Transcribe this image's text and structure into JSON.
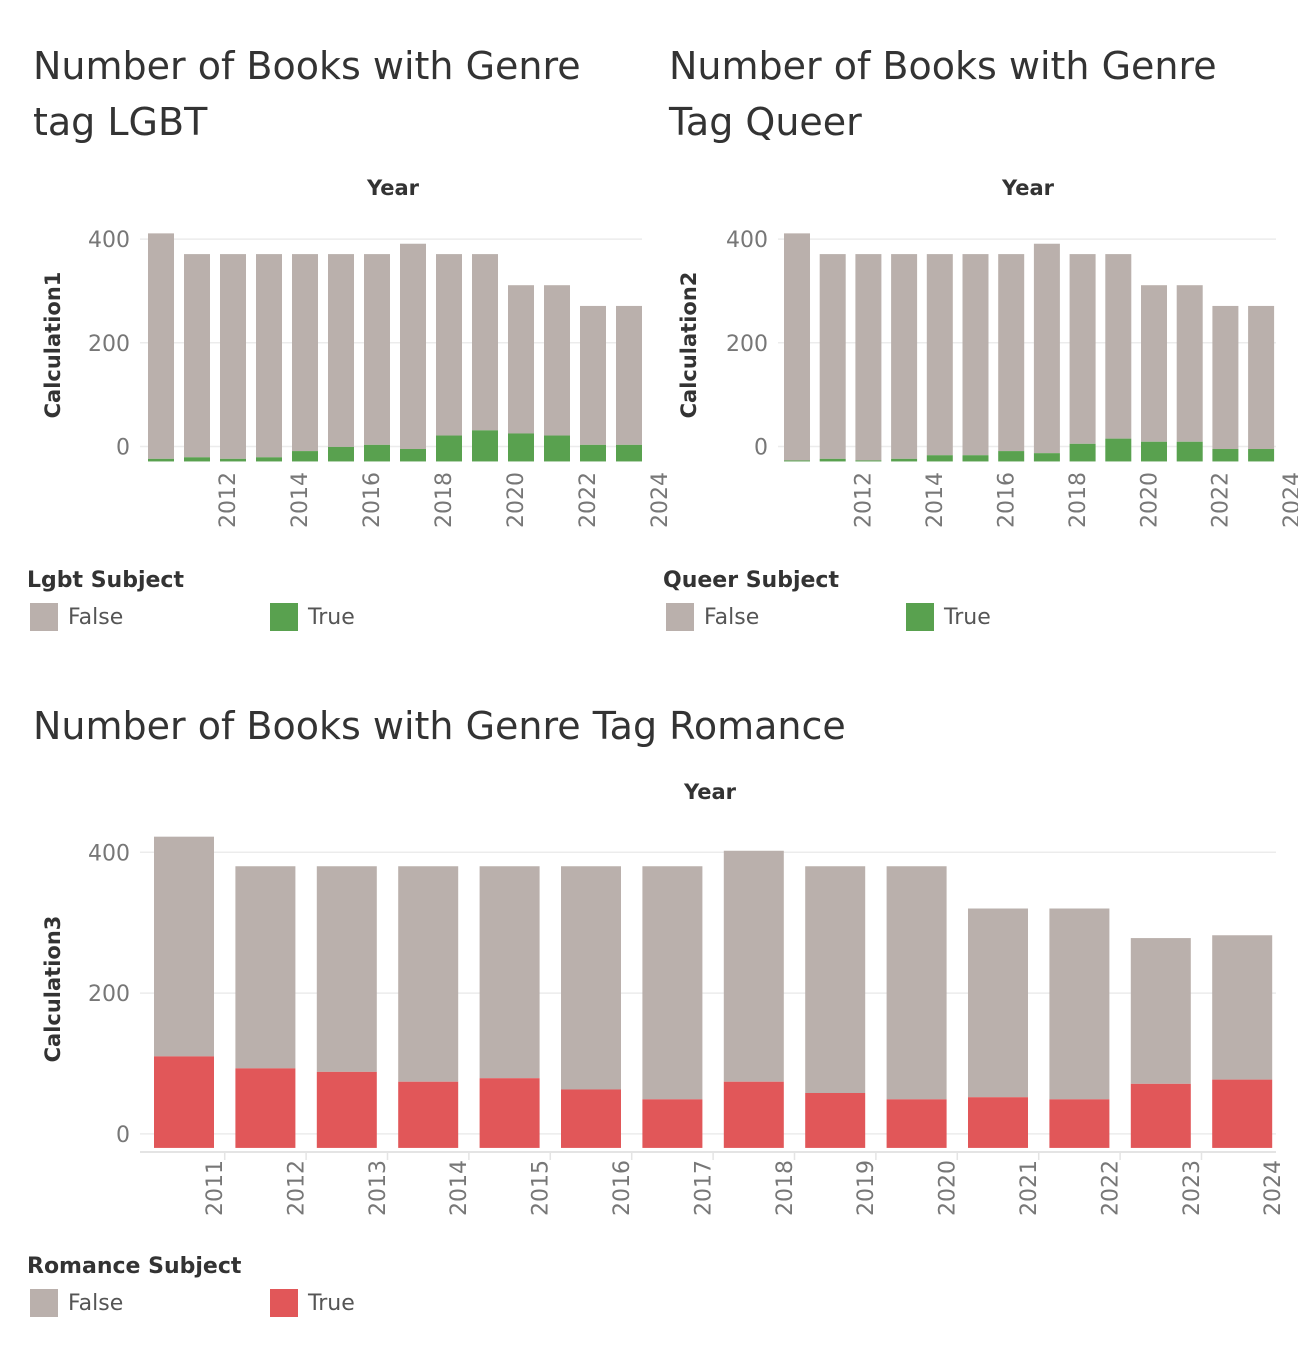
{
  "colors": {
    "false": "#bab0ac",
    "lgbt_true": "#59a14f",
    "queer_true": "#59a14f",
    "romance_true": "#e15759"
  },
  "chart_data": [
    {
      "id": "lgbt",
      "type": "bar",
      "stacked": true,
      "title": "Number of Books with Genre tag LGBT",
      "xlabel": "Year",
      "ylabel": "Calculation1",
      "categories": [
        "2011",
        "2012",
        "2013",
        "2014",
        "2015",
        "2016",
        "2017",
        "2018",
        "2019",
        "2020",
        "2021",
        "2022",
        "2023",
        "2024"
      ],
      "x_tick_labels": [
        "2012",
        "2014",
        "2016",
        "2018",
        "2020",
        "2022",
        "2024"
      ],
      "y_ticks": [
        0,
        200,
        400
      ],
      "ylim": [
        -30,
        460
      ],
      "series": [
        {
          "name": "True",
          "values": [
            5,
            8,
            5,
            8,
            20,
            28,
            32,
            24,
            50,
            60,
            54,
            50,
            32,
            32
          ]
        },
        {
          "name": "False",
          "values": [
            435,
            392,
            395,
            392,
            380,
            372,
            368,
            396,
            350,
            340,
            286,
            290,
            268,
            268
          ]
        }
      ],
      "legend": {
        "title": "Lgbt Subject",
        "items": [
          "False",
          "True"
        ]
      }
    },
    {
      "id": "queer",
      "type": "bar",
      "stacked": true,
      "title": "Number of Books with Genre Tag Queer",
      "xlabel": "Year",
      "ylabel": "Calculation2",
      "categories": [
        "2011",
        "2012",
        "2013",
        "2014",
        "2015",
        "2016",
        "2017",
        "2018",
        "2019",
        "2020",
        "2021",
        "2022",
        "2023",
        "2024"
      ],
      "x_tick_labels": [
        "2012",
        "2014",
        "2016",
        "2018",
        "2020",
        "2022",
        "2024"
      ],
      "y_ticks": [
        0,
        200,
        400
      ],
      "ylim": [
        -30,
        460
      ],
      "series": [
        {
          "name": "True",
          "values": [
            2,
            5,
            2,
            5,
            12,
            12,
            20,
            16,
            34,
            44,
            38,
            38,
            24,
            24
          ]
        },
        {
          "name": "False",
          "values": [
            438,
            395,
            398,
            395,
            388,
            388,
            380,
            404,
            366,
            356,
            302,
            302,
            276,
            276
          ]
        }
      ],
      "legend": {
        "title": "Queer Subject",
        "items": [
          "False",
          "True"
        ]
      }
    },
    {
      "id": "romance",
      "type": "bar",
      "stacked": true,
      "title": "Number of Books with Genre Tag Romance",
      "xlabel": "Year",
      "ylabel": "Calculation3",
      "categories": [
        "2011",
        "2012",
        "2013",
        "2014",
        "2015",
        "2016",
        "2017",
        "2018",
        "2019",
        "2020",
        "2021",
        "2022",
        "2023",
        "2024"
      ],
      "x_tick_labels": [
        "2011",
        "2012",
        "2013",
        "2014",
        "2015",
        "2016",
        "2017",
        "2018",
        "2019",
        "2020",
        "2021",
        "2022",
        "2023",
        "2024"
      ],
      "y_ticks": [
        0,
        200,
        400
      ],
      "ylim": [
        -20,
        460
      ],
      "series": [
        {
          "name": "True",
          "values": [
            130,
            113,
            108,
            94,
            99,
            83,
            69,
            94,
            78,
            69,
            72,
            69,
            91,
            97
          ]
        },
        {
          "name": "False",
          "values": [
            312,
            287,
            292,
            306,
            301,
            317,
            331,
            328,
            322,
            331,
            268,
            271,
            207,
            205
          ]
        }
      ],
      "legend": {
        "title": "Romance Subject",
        "items": [
          "False",
          "True"
        ]
      }
    }
  ],
  "titles": {
    "lgbt_line1": "Number of Books with Genre",
    "lgbt_line2": "tag LGBT",
    "queer_line1": "Number of Books with Genre",
    "queer_line2": "Tag Queer",
    "romance": "Number of Books with Genre Tag Romance"
  },
  "legends": {
    "lgbt": {
      "title": "Lgbt Subject",
      "false_label": "False",
      "true_label": "True"
    },
    "queer": {
      "title": "Queer Subject",
      "false_label": "False",
      "true_label": "True"
    },
    "romance": {
      "title": "Romance Subject",
      "false_label": "False",
      "true_label": "True"
    }
  }
}
